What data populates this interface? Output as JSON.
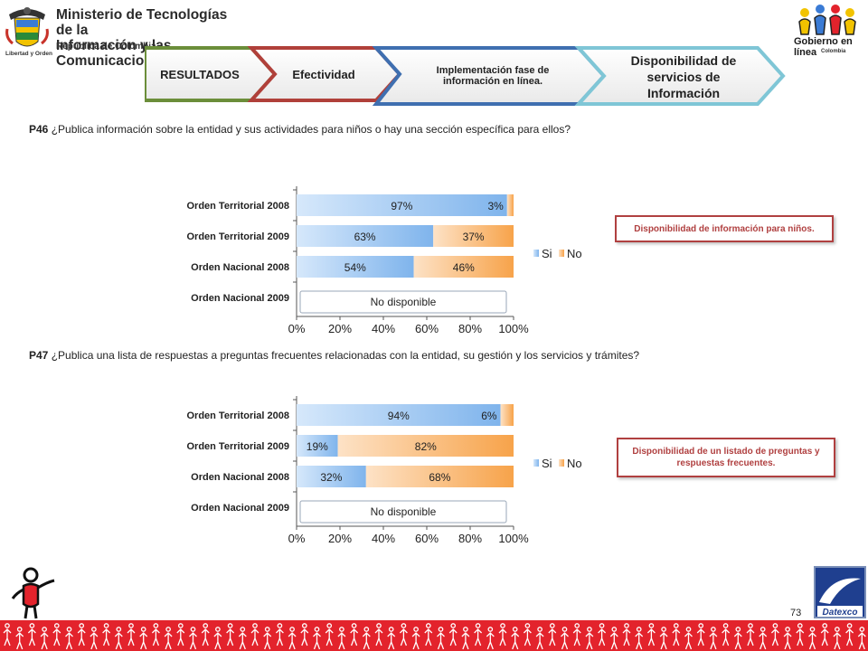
{
  "header": {
    "ministry_line1": "Ministerio de Tecnologías de la",
    "ministry_line2": "Información y las Comunicaciones",
    "ministry_sub": "República de Colombia",
    "crest_motto": "Libertad y Orden",
    "gel_title": "Gobierno en línea",
    "gel_sub": "Colombia"
  },
  "steps": [
    {
      "label": "RESULTADOS",
      "color": "#6b8e3a"
    },
    {
      "label": "Efectividad",
      "color": "#b0403a"
    },
    {
      "label": "Implementación fase de información en línea.",
      "color": "#3f6fb0"
    },
    {
      "label": "Disponibilidad de servicios de Información",
      "color": "#7fc6d6"
    }
  ],
  "q46": {
    "number": "P46",
    "text": " ¿Publica información sobre la entidad y sus actividades para niños o hay una sección específica para ellos?",
    "note": "Disponibilidad de información para niños."
  },
  "q47": {
    "number": "P47",
    "text": " ¿Publica una lista de respuestas a preguntas frecuentes relacionadas con la entidad, su gestión y los servicios y trámites?",
    "note": "Disponibilidad de un listado de preguntas y respuestas frecuentes."
  },
  "chart_data": [
    {
      "type": "bar",
      "orientation": "horizontal",
      "stacked": true,
      "categories": [
        "Orden Territorial 2008",
        "Orden Territorial 2009",
        "Orden Nacional 2008",
        "Orden Nacional 2009"
      ],
      "series": [
        {
          "name": "Si",
          "values": [
            97,
            63,
            54,
            null
          ],
          "color": "#7fb4ec"
        },
        {
          "name": "No",
          "values": [
            3,
            37,
            46,
            null
          ],
          "color": "#f7a34a"
        }
      ],
      "data_labels": [
        [
          "97%",
          "3%"
        ],
        [
          "63%",
          "37%"
        ],
        [
          "54%",
          "46%"
        ],
        []
      ],
      "unavailable": {
        "category": "Orden Nacional 2009",
        "label": "No disponible"
      },
      "xlim": [
        0,
        100
      ],
      "xticks": [
        "0%",
        "20%",
        "40%",
        "60%",
        "80%",
        "100%"
      ],
      "legend": "right",
      "grid": false
    },
    {
      "type": "bar",
      "orientation": "horizontal",
      "stacked": true,
      "categories": [
        "Orden Territorial 2008",
        "Orden Territorial 2009",
        "Orden Nacional 2008",
        "Orden Nacional 2009"
      ],
      "series": [
        {
          "name": "Si",
          "values": [
            94,
            19,
            32,
            null
          ],
          "color": "#7fb4ec"
        },
        {
          "name": "No",
          "values": [
            6,
            82,
            68,
            null
          ],
          "color": "#f7a34a"
        }
      ],
      "data_labels": [
        [
          "94%",
          "6%"
        ],
        [
          "19%",
          "82%"
        ],
        [
          "32%",
          "68%"
        ],
        []
      ],
      "unavailable": {
        "category": "Orden Nacional 2009",
        "label": "No disponible"
      },
      "xlim": [
        0,
        100
      ],
      "xticks": [
        "0%",
        "20%",
        "40%",
        "60%",
        "80%",
        "100%"
      ],
      "legend": "right",
      "grid": false
    }
  ],
  "page_number": "73",
  "footer_brand": "Datexco"
}
